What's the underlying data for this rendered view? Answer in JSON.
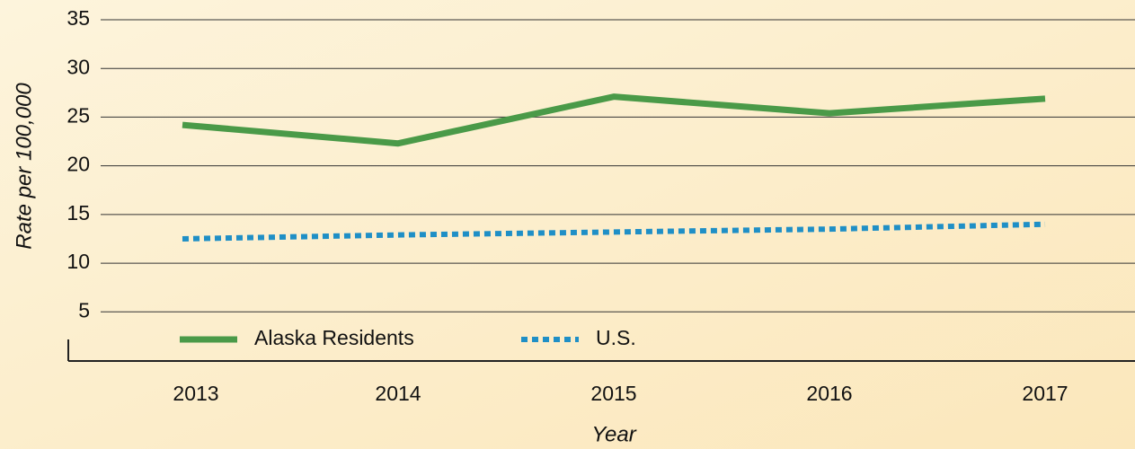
{
  "chart_data": {
    "type": "line",
    "categories": [
      "2013",
      "2014",
      "2015",
      "2016",
      "2017"
    ],
    "series": [
      {
        "name": "Alaska Residents",
        "color": "#4a9a48",
        "values": [
          24.2,
          22.3,
          27.1,
          25.4,
          26.9
        ]
      },
      {
        "name": "U.S.",
        "color": "#1f8fc6",
        "values": [
          12.5,
          12.9,
          13.2,
          13.5,
          14.0
        ]
      }
    ],
    "ylim": [
      0,
      35
    ],
    "yticks": [
      5,
      10,
      15,
      20,
      25,
      30,
      35
    ],
    "grid": true,
    "xlabel": "Year",
    "ylabel": "Rate per 100,000",
    "legend": "bottom-left"
  }
}
